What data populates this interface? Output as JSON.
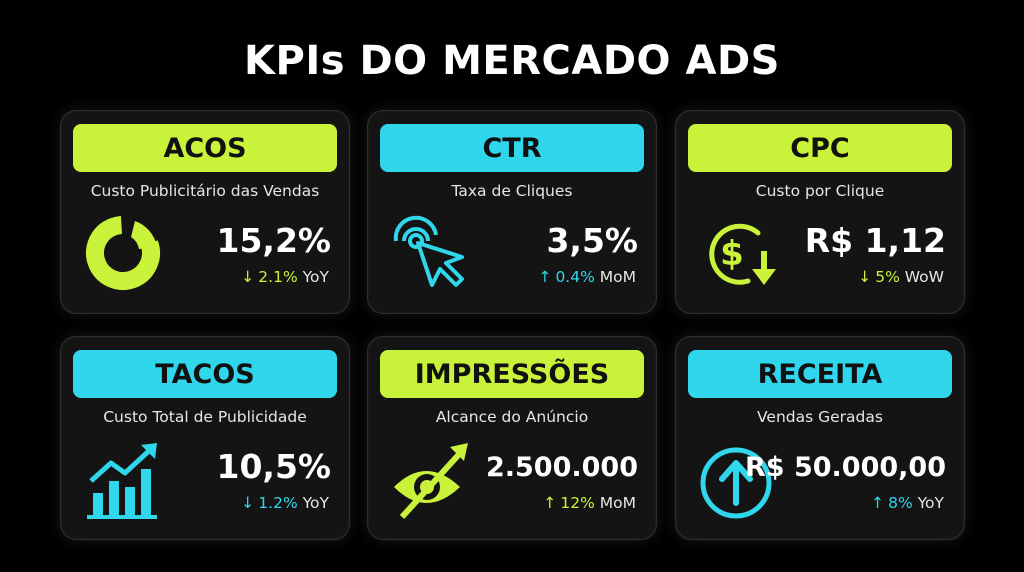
{
  "title": "KPIs DO MERCADO ADS",
  "colors": {
    "lime": "#c9f23a",
    "cyan": "#2fd6ec",
    "card_bg": "#141414",
    "page_bg": "#000000"
  },
  "cards": [
    {
      "header": "ACOS",
      "subtitle": "Custo Publicitário das Vendas",
      "value": "15,2%",
      "trend_arrow": "↓",
      "trend_pct": "2.1%",
      "trend_period": "YoY",
      "icon": "donut-chart-icon"
    },
    {
      "header": "CTR",
      "subtitle": "Taxa de Cliques",
      "value": "3,5%",
      "trend_arrow": "↑",
      "trend_pct": "0.4%",
      "trend_period": "MoM",
      "icon": "cursor-click-icon"
    },
    {
      "header": "CPC",
      "subtitle": "Custo por Clique",
      "value": "R$ 1,12",
      "trend_arrow": "↓",
      "trend_pct": "5%",
      "trend_period": "WoW",
      "icon": "dollar-down-icon"
    },
    {
      "header": "TACOS",
      "subtitle": "Custo Total de Publicidade",
      "value": "10,5%",
      "trend_arrow": "↓",
      "trend_pct": "1.2%",
      "trend_period": "YoY",
      "icon": "bar-chart-growth-icon"
    },
    {
      "header": "IMPRESSÕES",
      "subtitle": "Alcance do Anúncio",
      "value": "2.500.000",
      "trend_arrow": "↑",
      "trend_pct": "12%",
      "trend_period": "MoM",
      "icon": "eye-arrow-icon"
    },
    {
      "header": "RECEITA",
      "subtitle": "Vendas Geradas",
      "value": "R$ 50.000,00",
      "trend_arrow": "↑",
      "trend_pct": "8%",
      "trend_period": "YoY",
      "icon": "arrow-up-circle-icon"
    }
  ]
}
